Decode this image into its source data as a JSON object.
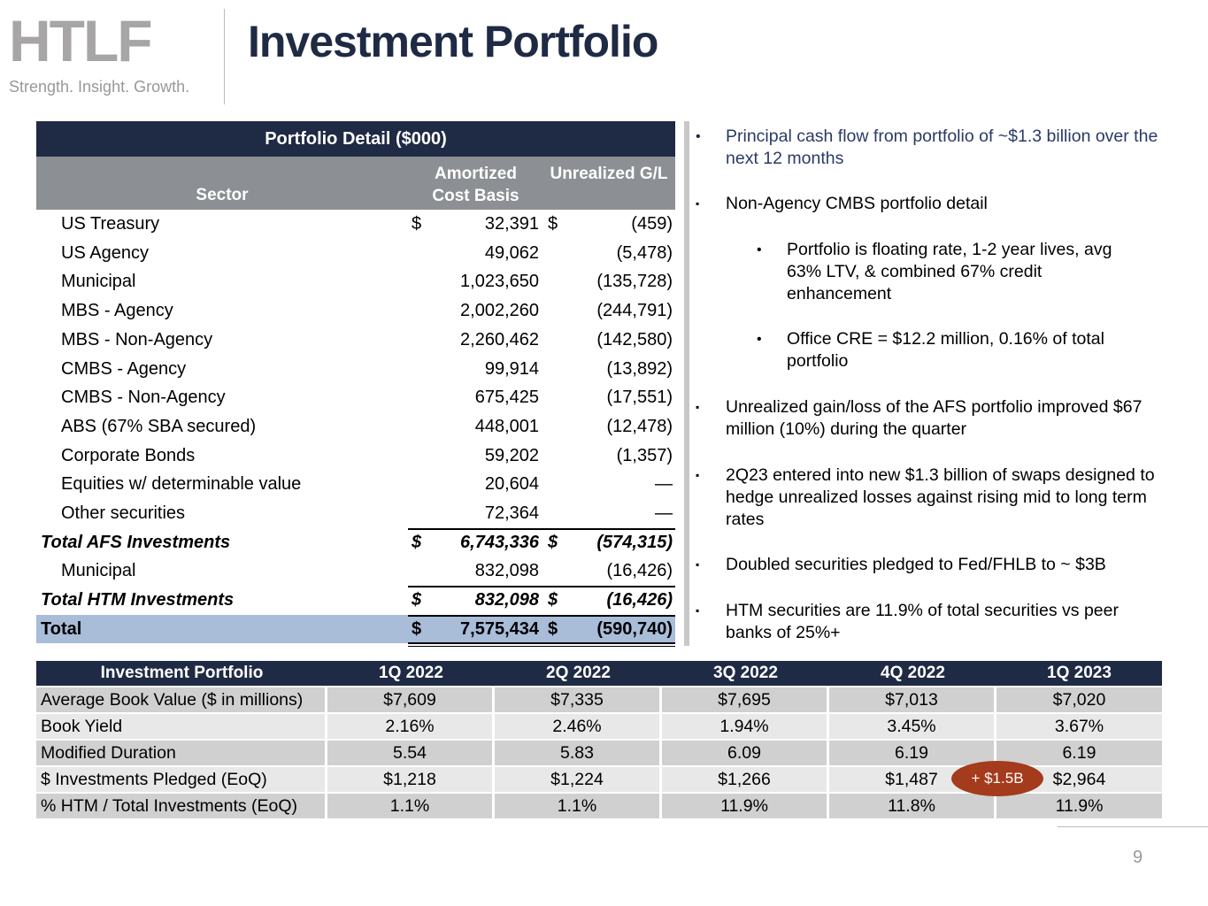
{
  "logo": {
    "wordmark": "HTLF",
    "tagline": "Strength. Insight. Growth."
  },
  "title": "Investment Portfolio",
  "portfolio_table": {
    "title": "Portfolio Detail ($000)",
    "headers": [
      "Sector",
      "Amortized Cost Basis",
      "Unrealized G/L"
    ],
    "afs_rows": [
      {
        "sector": "US Treasury",
        "cost_sign": "$",
        "cost": "32,391",
        "gl_sign": "$",
        "gl": "(459)"
      },
      {
        "sector": "US Agency",
        "cost": "49,062",
        "gl": "(5,478)"
      },
      {
        "sector": "Municipal",
        "cost": "1,023,650",
        "gl": "(135,728)"
      },
      {
        "sector": "MBS - Agency",
        "cost": "2,002,260",
        "gl": "(244,791)"
      },
      {
        "sector": "MBS - Non-Agency",
        "cost": "2,260,462",
        "gl": "(142,580)"
      },
      {
        "sector": "CMBS - Agency",
        "cost": "99,914",
        "gl": "(13,892)"
      },
      {
        "sector": "CMBS - Non-Agency",
        "cost": "675,425",
        "gl": "(17,551)"
      },
      {
        "sector": "ABS (67% SBA secured)",
        "cost": "448,001",
        "gl": "(12,478)"
      },
      {
        "sector": "Corporate Bonds",
        "cost": "59,202",
        "gl": "(1,357)"
      },
      {
        "sector": "Equities w/ determinable value",
        "cost": "20,604",
        "gl": "—"
      },
      {
        "sector": "Other securities",
        "cost": "72,364",
        "gl": "—"
      }
    ],
    "total_afs": {
      "sector": "Total AFS Investments",
      "cost_sign": "$",
      "cost": "6,743,336",
      "gl_sign": "$",
      "gl": "(574,315)"
    },
    "htm_rows": [
      {
        "sector": "Municipal",
        "cost": "832,098",
        "gl": "(16,426)"
      }
    ],
    "total_htm": {
      "sector": "Total HTM Investments",
      "cost_sign": "$",
      "cost": "832,098",
      "gl_sign": "$",
      "gl": "(16,426)"
    },
    "total": {
      "sector": "Total",
      "cost_sign": "$",
      "cost": "7,575,434",
      "gl_sign": "$",
      "gl": "(590,740)"
    }
  },
  "bullets": [
    {
      "text": "Principal cash flow from portfolio of ~$1.3 billion over the next 12 months"
    },
    {
      "text": "Non-Agency CMBS portfolio detail",
      "sub": [
        "Portfolio is floating rate, 1-2 year lives, avg 63% LTV, & combined 67% credit enhancement",
        "Office CRE = $12.2 million, 0.16% of total portfolio"
      ]
    },
    {
      "text": "Unrealized gain/loss of the AFS portfolio improved $67 million (10%) during the quarter"
    },
    {
      "text": "2Q23 entered into new $1.3 billion of swaps designed to hedge unrealized losses against rising mid to long term rates"
    },
    {
      "text": "Doubled securities pledged to Fed/FHLB to ~ $3B"
    },
    {
      "text": "HTM securities are 11.9% of total securities vs peer banks of 25%+"
    }
  ],
  "summary_table": {
    "headers": [
      "Investment Portfolio",
      "1Q 2022",
      "2Q 2022",
      "3Q 2022",
      "4Q 2022",
      "1Q 2023"
    ],
    "rows": [
      [
        "Average Book Value ($ in millions)",
        "$7,609",
        "$7,335",
        "$7,695",
        "$7,013",
        "$7,020"
      ],
      [
        "Book Yield",
        "2.16%",
        "2.46%",
        "1.94%",
        "3.45%",
        "3.67%"
      ],
      [
        "Modified Duration",
        "5.54",
        "5.83",
        "6.09",
        "6.19",
        "6.19"
      ],
      [
        "$ Investments Pledged (EoQ)",
        "$1,218",
        "$1,224",
        "$1,266",
        "$1,487",
        "$2,964"
      ],
      [
        "% HTM / Total Investments (EoQ)",
        "1.1%",
        "1.1%",
        "11.9%",
        "11.8%",
        "11.9%"
      ]
    ],
    "callout": "+ $1.5B"
  },
  "page_number": "9"
}
